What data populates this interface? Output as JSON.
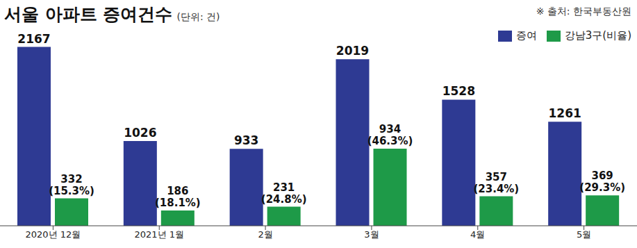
{
  "chart_data": {
    "type": "bar",
    "title": "서울 아파트 증여건수",
    "subtitle": "(단위: 건)",
    "source": "※ 출처: 한국부동산원",
    "categories": [
      "2020년 12월",
      "2021년 1월",
      "2월",
      "3월",
      "4월",
      "5월"
    ],
    "series": [
      {
        "name": "증여",
        "color": "#2e3a93",
        "values": [
          2167,
          1026,
          933,
          2019,
          1528,
          1261
        ]
      },
      {
        "name": "강남3구(비율)",
        "color": "#1e9a48",
        "values": [
          332,
          186,
          231,
          934,
          357,
          369
        ],
        "value_labels": [
          "332\n(15.3%)",
          "186\n(18.1%)",
          "231\n(24.8%)",
          "934\n(46.3%)",
          "357\n(23.4%)",
          "369\n(29.3%)"
        ]
      }
    ],
    "ylim": [
      0,
      2500
    ],
    "yticks": [
      0,
      2500
    ],
    "grid": false,
    "legend": "top-right",
    "data_labels": true,
    "tick_labels": "x"
  }
}
